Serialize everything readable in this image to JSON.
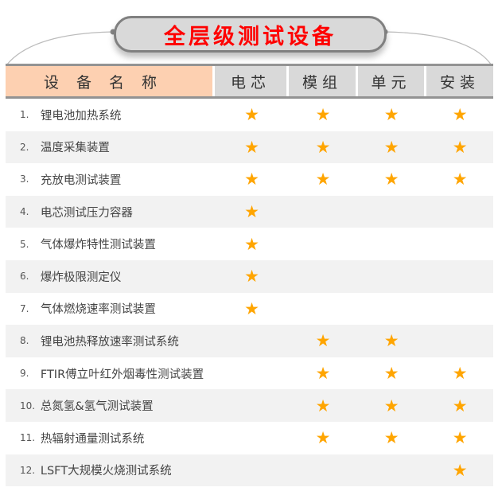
{
  "title": "全层级测试设备",
  "colors": {
    "title": "#ff0000",
    "star": "#ffa500",
    "name_header_bg": "#fdd0b1",
    "header_bg": "#d9d9d9",
    "stripe": "#f2f2f2"
  },
  "star_icon": "★",
  "headers": [
    "设备名称",
    "电芯",
    "模组",
    "单元",
    "安装"
  ],
  "rows": [
    {
      "num": "1.",
      "name": "锂电池加热系统",
      "marks": [
        1,
        1,
        1,
        1
      ]
    },
    {
      "num": "2.",
      "name": "温度采集装置",
      "marks": [
        1,
        1,
        1,
        1
      ]
    },
    {
      "num": "3.",
      "name": "充放电测试装置",
      "marks": [
        1,
        1,
        1,
        1
      ]
    },
    {
      "num": "4.",
      "name": "电芯测试压力容器",
      "marks": [
        1,
        0,
        0,
        0
      ]
    },
    {
      "num": "5.",
      "name": "气体爆炸特性测试装置",
      "marks": [
        1,
        0,
        0,
        0
      ]
    },
    {
      "num": "6.",
      "name": "爆炸极限测定仪",
      "marks": [
        1,
        0,
        0,
        0
      ]
    },
    {
      "num": "7.",
      "name": "气体燃烧速率测试装置",
      "marks": [
        1,
        0,
        0,
        0
      ]
    },
    {
      "num": "8.",
      "name": "锂电池热释放速率测试系统",
      "marks": [
        0,
        1,
        1,
        0
      ]
    },
    {
      "num": "9.",
      "name": "FTIR傅立叶红外烟毒性测试装置",
      "marks": [
        0,
        1,
        1,
        1
      ]
    },
    {
      "num": "10.",
      "name": "总氮氢&氢气测试装置",
      "marks": [
        0,
        1,
        1,
        1
      ]
    },
    {
      "num": "11.",
      "name": "热辐射通量测试系统",
      "marks": [
        0,
        1,
        1,
        1
      ]
    },
    {
      "num": "12.",
      "name": "LSFT大规模火烧测试系统",
      "marks": [
        0,
        0,
        0,
        1
      ]
    }
  ]
}
